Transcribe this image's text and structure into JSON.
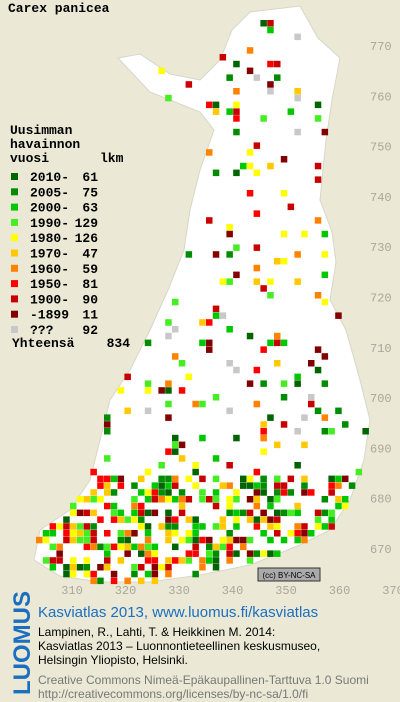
{
  "title": "Carex panicea",
  "legend": {
    "header": [
      "Uusimman",
      "havainnon",
      "vuosi"
    ],
    "count_header": "lkm",
    "rows": [
      {
        "label": "2010-",
        "count": 61,
        "color": "#006400"
      },
      {
        "label": "2005-",
        "count": 75,
        "color": "#008c00"
      },
      {
        "label": "2000-",
        "count": 63,
        "color": "#00c800"
      },
      {
        "label": "1990-",
        "count": 129,
        "color": "#44ee22"
      },
      {
        "label": "1980-",
        "count": 126,
        "color": "#ffff00"
      },
      {
        "label": "1970-",
        "count": 47,
        "color": "#ffc800"
      },
      {
        "label": "1960-",
        "count": 59,
        "color": "#ff8200"
      },
      {
        "label": "1950-",
        "count": 81,
        "color": "#ff0000"
      },
      {
        "label": "1900-",
        "count": 90,
        "color": "#c80000"
      },
      {
        "label": "-1899",
        "count": 11,
        "color": "#820000"
      },
      {
        "label": "???",
        "count": 92,
        "color": "#c8c8c8"
      }
    ],
    "total_label": "Yhteensä",
    "total": 834
  },
  "map": {
    "xticks": [
      310,
      320,
      330,
      340,
      350,
      360,
      370
    ],
    "yticks": [
      670,
      680,
      690,
      700,
      710,
      720,
      730,
      740,
      750,
      760,
      770
    ]
  },
  "license_badge": "(cc) BY-NC-SA",
  "footer": {
    "brand": "LUOMUS",
    "headline": "Kasviatlas 2013, www.luomus.fi/kasviatlas",
    "citation": [
      "Lampinen, R., Lahti, T. & Heikkinen M. 2014:",
      "Kasviatlas 2013 – Luonnontieteellinen keskusmuseo,",
      "Helsingin Yliopisto, Helsinki."
    ],
    "license": [
      "Creative Commons Nimeä-Epäkaupallinen-Tarttuva 1.0 Suomi",
      "http://creativecommons.org/licenses/by-nc-sa/1.0/fi"
    ]
  }
}
